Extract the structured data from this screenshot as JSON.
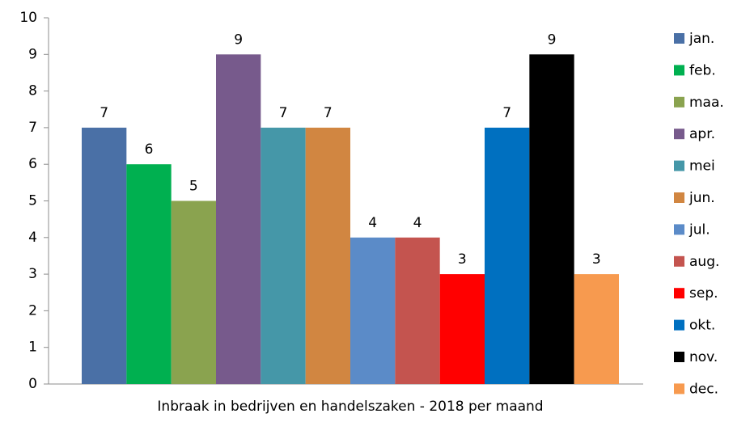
{
  "chart_data": {
    "type": "bar",
    "xlabel": "Inbraak in bedrijven en handelszaken - 2018 per maand",
    "series": [
      {
        "name": "jan.",
        "color": "#4a70a6",
        "values": [
          7
        ]
      },
      {
        "name": "feb.",
        "color": "#00b050",
        "values": [
          6
        ]
      },
      {
        "name": "maa.",
        "color": "#8aa34f",
        "values": [
          5
        ]
      },
      {
        "name": "apr.",
        "color": "#775a8c",
        "values": [
          9
        ]
      },
      {
        "name": "mei",
        "color": "#4597a8",
        "values": [
          7
        ]
      },
      {
        "name": "jun.",
        "color": "#d18641",
        "values": [
          7
        ]
      },
      {
        "name": "jul.",
        "color": "#5b8bc8",
        "values": [
          4
        ]
      },
      {
        "name": "aug.",
        "color": "#c4544f",
        "values": [
          4
        ]
      },
      {
        "name": "sep.",
        "color": "#ff0000",
        "values": [
          3
        ]
      },
      {
        "name": "okt.",
        "color": "#0070c0",
        "values": [
          7
        ]
      },
      {
        "name": "nov.",
        "color": "#000000",
        "values": [
          9
        ]
      },
      {
        "name": "dec.",
        "color": "#f79a4f",
        "values": [
          3
        ]
      }
    ],
    "ylim": [
      0,
      10
    ],
    "yticks": [
      0,
      1,
      2,
      3,
      4,
      5,
      6,
      7,
      8,
      9,
      10
    ],
    "legend": "right",
    "grid": false
  }
}
